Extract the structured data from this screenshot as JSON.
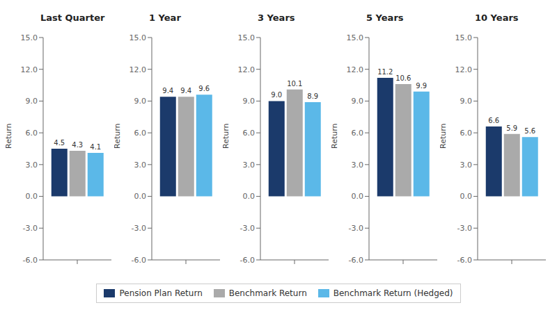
{
  "chart_data": [
    {
      "type": "bar",
      "title": "Last Quarter",
      "ylabel": "Return",
      "categories": [
        null
      ],
      "series": [
        {
          "name": "Pension Plan Return",
          "color": "#1B3A6B",
          "values": [
            4.5
          ],
          "value_labels": [
            "4.5"
          ]
        },
        {
          "name": "Benchmark Return",
          "color": "#AAAAAA",
          "values": [
            4.3
          ],
          "value_labels": [
            "4.3"
          ]
        },
        {
          "name": "Benchmark Return (Hedged)",
          "color": "#5BB8E8",
          "values": [
            4.1
          ],
          "value_labels": [
            "4.1"
          ]
        }
      ],
      "ylim": [
        -6.0,
        15.0
      ],
      "yticks": [
        {
          "value": -6.0,
          "label": "-6.0"
        },
        {
          "value": -3.0,
          "label": "-3.0"
        },
        {
          "value": 0.0,
          "label": "0.0"
        },
        {
          "value": 3.0,
          "label": "3.0"
        },
        {
          "value": 6.0,
          "label": "6.0"
        },
        {
          "value": 9.0,
          "label": "9.0"
        },
        {
          "value": 12.0,
          "label": "12.0"
        },
        {
          "value": 15.0,
          "label": "15.0"
        }
      ],
      "grid": false,
      "legend": "bottom",
      "data_labels": true
    },
    {
      "type": "bar",
      "title": "1 Year",
      "ylabel": "Return",
      "categories": [
        null
      ],
      "series": [
        {
          "name": "Pension Plan Return",
          "color": "#1B3A6B",
          "values": [
            9.4
          ],
          "value_labels": [
            "9.4"
          ]
        },
        {
          "name": "Benchmark Return",
          "color": "#AAAAAA",
          "values": [
            9.4
          ],
          "value_labels": [
            "9.4"
          ]
        },
        {
          "name": "Benchmark Return (Hedged)",
          "color": "#5BB8E8",
          "values": [
            9.6
          ],
          "value_labels": [
            "9.6"
          ]
        }
      ],
      "ylim": [
        -6.0,
        15.0
      ],
      "yticks": [
        {
          "value": -6.0,
          "label": "-6.0"
        },
        {
          "value": -3.0,
          "label": "-3.0"
        },
        {
          "value": 0.0,
          "label": "0.0"
        },
        {
          "value": 3.0,
          "label": "3.0"
        },
        {
          "value": 6.0,
          "label": "6.0"
        },
        {
          "value": 9.0,
          "label": "9.0"
        },
        {
          "value": 12.0,
          "label": "12.0"
        },
        {
          "value": 15.0,
          "label": "15.0"
        }
      ],
      "grid": false,
      "legend": "bottom",
      "data_labels": true
    },
    {
      "type": "bar",
      "title": "3 Years",
      "ylabel": "Return",
      "categories": [
        null
      ],
      "series": [
        {
          "name": "Pension Plan Return",
          "color": "#1B3A6B",
          "values": [
            9.0
          ],
          "value_labels": [
            "9.0"
          ]
        },
        {
          "name": "Benchmark Return",
          "color": "#AAAAAA",
          "values": [
            10.1
          ],
          "value_labels": [
            "10.1"
          ]
        },
        {
          "name": "Benchmark Return (Hedged)",
          "color": "#5BB8E8",
          "values": [
            8.9
          ],
          "value_labels": [
            "8.9"
          ]
        }
      ],
      "ylim": [
        -6.0,
        15.0
      ],
      "yticks": [
        {
          "value": -6.0,
          "label": "-6.0"
        },
        {
          "value": -3.0,
          "label": "-3.0"
        },
        {
          "value": 0.0,
          "label": "0.0"
        },
        {
          "value": 3.0,
          "label": "3.0"
        },
        {
          "value": 6.0,
          "label": "6.0"
        },
        {
          "value": 9.0,
          "label": "9.0"
        },
        {
          "value": 12.0,
          "label": "12.0"
        },
        {
          "value": 15.0,
          "label": "15.0"
        }
      ],
      "grid": false,
      "legend": "bottom",
      "data_labels": true
    },
    {
      "type": "bar",
      "title": "5 Years",
      "ylabel": "Return",
      "categories": [
        null
      ],
      "series": [
        {
          "name": "Pension Plan Return",
          "color": "#1B3A6B",
          "values": [
            11.2
          ],
          "value_labels": [
            "11.2"
          ]
        },
        {
          "name": "Benchmark Return",
          "color": "#AAAAAA",
          "values": [
            10.6
          ],
          "value_labels": [
            "10.6"
          ]
        },
        {
          "name": "Benchmark Return (Hedged)",
          "color": "#5BB8E8",
          "values": [
            9.9
          ],
          "value_labels": [
            "9.9"
          ]
        }
      ],
      "ylim": [
        -6.0,
        15.0
      ],
      "yticks": [
        {
          "value": -6.0,
          "label": "-6.0"
        },
        {
          "value": -3.0,
          "label": "-3.0"
        },
        {
          "value": 0.0,
          "label": "0.0"
        },
        {
          "value": 3.0,
          "label": "3.0"
        },
        {
          "value": 6.0,
          "label": "6.0"
        },
        {
          "value": 9.0,
          "label": "9.0"
        },
        {
          "value": 12.0,
          "label": "12.0"
        },
        {
          "value": 15.0,
          "label": "15.0"
        }
      ],
      "grid": false,
      "legend": "bottom",
      "data_labels": true
    },
    {
      "type": "bar",
      "title": "10 Years",
      "ylabel": "Return",
      "categories": [
        null
      ],
      "series": [
        {
          "name": "Pension Plan Return",
          "color": "#1B3A6B",
          "values": [
            6.6
          ],
          "value_labels": [
            "6.6"
          ]
        },
        {
          "name": "Benchmark Return",
          "color": "#AAAAAA",
          "values": [
            5.9
          ],
          "value_labels": [
            "5.9"
          ]
        },
        {
          "name": "Benchmark Return (Hedged)",
          "color": "#5BB8E8",
          "values": [
            5.6
          ],
          "value_labels": [
            "5.6"
          ]
        }
      ],
      "ylim": [
        -6.0,
        15.0
      ],
      "yticks": [
        {
          "value": -6.0,
          "label": "-6.0"
        },
        {
          "value": -3.0,
          "label": "-3.0"
        },
        {
          "value": 0.0,
          "label": "0.0"
        },
        {
          "value": 3.0,
          "label": "3.0"
        },
        {
          "value": 6.0,
          "label": "6.0"
        },
        {
          "value": 9.0,
          "label": "9.0"
        },
        {
          "value": 12.0,
          "label": "12.0"
        },
        {
          "value": 15.0,
          "label": "15.0"
        }
      ],
      "grid": false,
      "legend": "bottom",
      "data_labels": true
    }
  ]
}
